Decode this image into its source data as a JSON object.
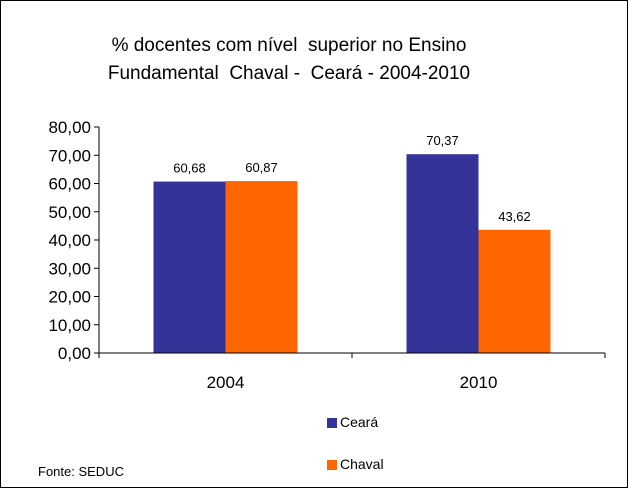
{
  "chart_data": {
    "type": "bar",
    "title_lines": [
      "% docentes com nível  superior no Ensino",
      "Fundamental  Chaval -  Ceará - 2004-2010"
    ],
    "categories": [
      "2004",
      "2010"
    ],
    "series": [
      {
        "name": "Ceará",
        "color": "#333399",
        "values": [
          60.68,
          70.37
        ],
        "labels": [
          "60,68",
          "70,37"
        ]
      },
      {
        "name": "Chaval",
        "color": "#ff6600",
        "values": [
          60.87,
          43.62
        ],
        "labels": [
          "60,87",
          "43,62"
        ]
      }
    ],
    "ylim": [
      0,
      80
    ],
    "yticks": [
      0,
      10,
      20,
      30,
      40,
      50,
      60,
      70,
      80
    ],
    "ytick_labels": [
      "0,00",
      "10,00",
      "20,00",
      "30,00",
      "40,00",
      "50,00",
      "60,00",
      "70,00",
      "80,00"
    ],
    "xlabel": "",
    "ylabel": "",
    "grid": false,
    "legend_position": "bottom"
  },
  "source_note": "Fonte: SEDUC"
}
